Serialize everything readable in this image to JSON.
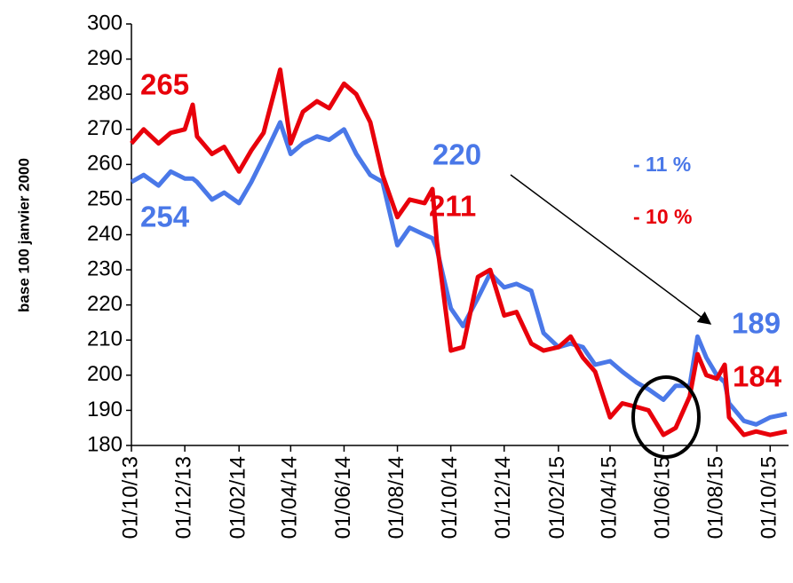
{
  "chart_data": {
    "type": "line",
    "y_label": "base 100 janvier 2000",
    "x": [
      "2013-10-01",
      "2013-10-15",
      "2013-11-01",
      "2013-11-15",
      "2013-12-01",
      "2013-12-10",
      "2013-12-15",
      "2014-01-01",
      "2014-01-15",
      "2014-02-01",
      "2014-02-15",
      "2014-03-01",
      "2014-03-20",
      "2014-04-01",
      "2014-04-15",
      "2014-05-01",
      "2014-05-15",
      "2014-06-01",
      "2014-06-15",
      "2014-07-01",
      "2014-07-15",
      "2014-08-01",
      "2014-08-15",
      "2014-09-01",
      "2014-09-10",
      "2014-09-15",
      "2014-10-01",
      "2014-10-15",
      "2014-11-01",
      "2014-11-15",
      "2014-12-01",
      "2014-12-15",
      "2015-01-01",
      "2015-01-15",
      "2015-02-01",
      "2015-02-15",
      "2015-03-01",
      "2015-03-15",
      "2015-04-01",
      "2015-04-15",
      "2015-05-01",
      "2015-05-15",
      "2015-06-01",
      "2015-06-15",
      "2015-07-01",
      "2015-07-10",
      "2015-07-20",
      "2015-08-01",
      "2015-08-10",
      "2015-08-15",
      "2015-09-01",
      "2015-09-15",
      "2015-10-01",
      "2015-10-20"
    ],
    "series": [
      {
        "color": "#4a78e8",
        "values": [
          255,
          257,
          254,
          258,
          256,
          256,
          255,
          250,
          252,
          249,
          255,
          262,
          272,
          263,
          266,
          268,
          267,
          270,
          263,
          257,
          255,
          237,
          242,
          240,
          239,
          236,
          219,
          214,
          222,
          229,
          225,
          226,
          224,
          212,
          208,
          209,
          208,
          203,
          204,
          201,
          198,
          196,
          193,
          197,
          197,
          211,
          205,
          200,
          198,
          192,
          187,
          186,
          188,
          189
        ]
      },
      {
        "color": "#e8000b",
        "values": [
          266,
          270,
          266,
          269,
          270,
          277,
          268,
          263,
          265,
          258,
          264,
          269,
          287,
          266,
          275,
          278,
          276,
          283,
          280,
          272,
          257,
          245,
          250,
          249,
          253,
          238,
          207,
          208,
          228,
          230,
          217,
          218,
          209,
          207,
          208,
          211,
          205,
          201,
          188,
          192,
          191,
          190,
          183,
          185,
          194,
          206,
          200,
          199,
          203,
          188,
          183,
          184,
          183,
          184
        ]
      }
    ],
    "xlim": [
      "2013-10-01",
      "2015-10-22"
    ],
    "xticks": [
      {
        "value": "2013-10-01",
        "label": "01/10/13"
      },
      {
        "value": "2013-12-01",
        "label": "01/12/13"
      },
      {
        "value": "2014-02-01",
        "label": "01/02/14"
      },
      {
        "value": "2014-04-01",
        "label": "01/04/14"
      },
      {
        "value": "2014-06-01",
        "label": "01/06/14"
      },
      {
        "value": "2014-08-01",
        "label": "01/08/14"
      },
      {
        "value": "2014-10-01",
        "label": "01/10/14"
      },
      {
        "value": "2014-12-01",
        "label": "01/12/14"
      },
      {
        "value": "2015-02-01",
        "label": "01/02/15"
      },
      {
        "value": "2015-04-01",
        "label": "01/04/15"
      },
      {
        "value": "2015-06-01",
        "label": "01/06/15"
      },
      {
        "value": "2015-08-01",
        "label": "01/08/15"
      },
      {
        "value": "2015-10-01",
        "label": "01/10/15"
      }
    ],
    "ylim": [
      180,
      300
    ],
    "yticks": [
      180,
      190,
      200,
      210,
      220,
      230,
      240,
      250,
      260,
      270,
      280,
      290,
      300
    ],
    "annotations": [
      "265",
      "254",
      "220",
      "211",
      "189",
      "184",
      "- 11 %",
      "- 10 %"
    ]
  }
}
